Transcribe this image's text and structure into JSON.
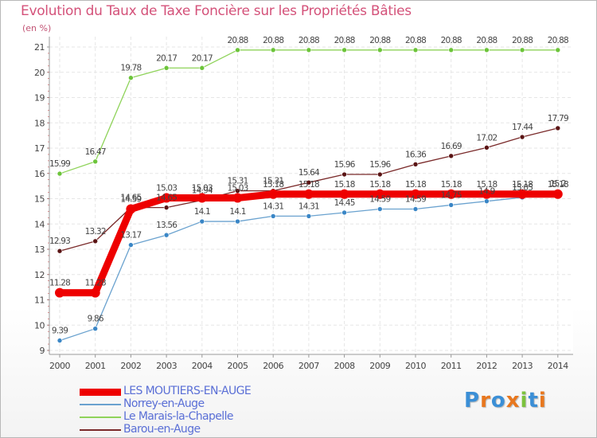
{
  "title": "Evolution du Taux de Taxe Foncière sur les Propriétés Bâties",
  "unit_label": "(en %)",
  "logo": {
    "letters": [
      "P",
      "r",
      "o",
      "x",
      "i",
      "t",
      "i"
    ],
    "colors": [
      "#3b8fd6",
      "#e8771e",
      "#3b8fd6",
      "#e8771e",
      "#7cc23e",
      "#3b8fd6",
      "#e8771e"
    ]
  },
  "chart_data": {
    "type": "line",
    "title": "Evolution du Taux de Taxe Foncière sur les Propriétés Bâties",
    "ylabel": "(en %)",
    "xlabel": "",
    "ylim": [
      9,
      21
    ],
    "yticks": [
      9,
      10,
      11,
      12,
      13,
      14,
      15,
      16,
      17,
      18,
      19,
      20,
      21
    ],
    "categories": [
      "2000",
      "2001",
      "2002",
      "2003",
      "2004",
      "2005",
      "2006",
      "2007",
      "2008",
      "2009",
      "2010",
      "2011",
      "2012",
      "2013",
      "2014"
    ],
    "grid": true,
    "series": [
      {
        "name": "Le Marais-la-Chapelle",
        "color": "#8fd35a",
        "marker": "#6cc43a",
        "width": 1.3,
        "values": [
          15.99,
          16.47,
          19.78,
          20.17,
          20.17,
          20.88,
          20.88,
          20.88,
          20.88,
          20.88,
          20.88,
          20.88,
          20.88,
          20.88,
          20.88
        ],
        "labels": [
          "15.99",
          "16.47",
          "19.78",
          "20.17",
          "20.17",
          "20.88",
          "20.88",
          "20.88",
          "20.88",
          "20.88",
          "20.88",
          "20.88",
          "20.88",
          "20.88",
          "20.88"
        ]
      },
      {
        "name": "Barou-en-Auge",
        "color": "#7a2a2a",
        "marker": "#5a1414",
        "width": 1.3,
        "values": [
          12.93,
          13.32,
          14.65,
          14.65,
          14.94,
          15.31,
          15.31,
          15.64,
          15.96,
          15.96,
          16.36,
          16.69,
          17.02,
          17.44,
          17.79
        ],
        "labels": [
          "12.93",
          "13.32",
          "14.65",
          "14.65",
          "14.94",
          "15.31",
          "15.31",
          "15.64",
          "15.96",
          "15.96",
          "16.36",
          "16.69",
          "17.02",
          "17.44",
          "17.79"
        ]
      },
      {
        "name": "Norrey-en-Auge",
        "color": "#6aa2cf",
        "marker": "#3a86c6",
        "width": 1.3,
        "values": [
          9.39,
          9.86,
          13.17,
          13.56,
          14.1,
          14.1,
          14.31,
          14.31,
          14.45,
          14.59,
          14.59,
          14.75,
          14.9,
          15.05,
          15.2
        ],
        "labels": [
          "9.39",
          "9.86",
          "13.17",
          "13.56",
          "14.1",
          "14.1",
          "14.31",
          "14.31",
          "14.45",
          "14.59",
          "14.59",
          "14.75",
          "14.9",
          "15.05",
          "15.2"
        ]
      },
      {
        "name": "LES MOUTIERS-EN-AUGE",
        "color": "#ee0000",
        "marker": "#ee0000",
        "width": 9,
        "values": [
          11.28,
          11.28,
          14.59,
          15.03,
          15.03,
          15.03,
          15.18,
          15.18,
          15.18,
          15.18,
          15.18,
          15.18,
          15.18,
          15.18,
          15.18
        ],
        "labels": [
          "11.28",
          "11.28",
          "14.59",
          "15.03",
          "15.03",
          "15.03",
          "15.18",
          "15.18",
          "15.18",
          "15.18",
          "15.18",
          "15.18",
          "15.18",
          "15.18",
          "15.18"
        ]
      }
    ],
    "legend": {
      "position": "bottom-left",
      "order": [
        "LES MOUTIERS-EN-AUGE",
        "Norrey-en-Auge",
        "Le Marais-la-Chapelle",
        "Barou-en-Auge"
      ]
    }
  }
}
